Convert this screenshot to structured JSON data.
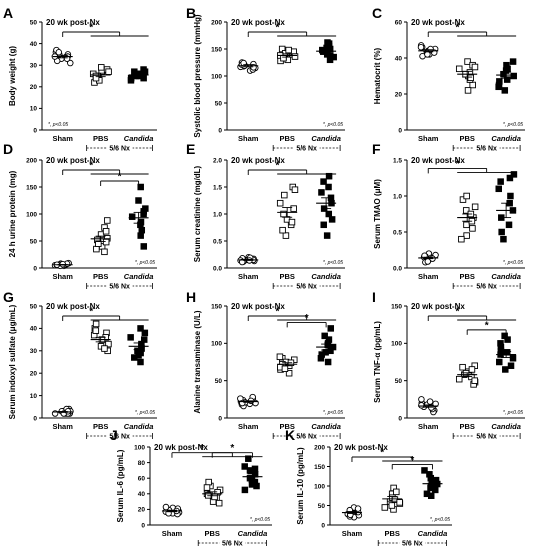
{
  "figure": {
    "group_label": "5/6 Nx",
    "significance_star": "*",
    "p_note": "*, p<0.05",
    "colors": {
      "ink": "#000000",
      "background": "#ffffff"
    }
  },
  "chart_data": [
    {
      "id": "A",
      "type": "scatter",
      "title": "20 wk post-Nx",
      "ylabel": "Body weight (g)",
      "ylim": [
        0,
        50
      ],
      "yticks": [
        0,
        10,
        20,
        30,
        40,
        50
      ],
      "categories": [
        "Sham",
        "PBS",
        "Candida"
      ],
      "markers": [
        "circle",
        "square",
        "square-filled"
      ],
      "values": [
        [
          34,
          36,
          33,
          35,
          32,
          34,
          37,
          31,
          35,
          33,
          34,
          36
        ],
        [
          27,
          24,
          25,
          29,
          22,
          26,
          28,
          25,
          23,
          27,
          24
        ],
        [
          26,
          25,
          27,
          24,
          28,
          23,
          26,
          27,
          25,
          24,
          26
        ]
      ],
      "means": [
        34,
        25.5,
        25.5
      ],
      "sem": [
        0.6,
        0.8,
        0.5
      ],
      "brackets": [
        {
          "a": 0,
          "b": [
            1,
            2
          ],
          "label": "*"
        }
      ],
      "pnote": "*, p<0.05",
      "pnote_pos": "bottom-left"
    },
    {
      "id": "B",
      "type": "scatter",
      "title": "20 wk post-Nx",
      "ylabel": "Systolic blood pressure (mmHg)",
      "ylim": [
        0,
        200
      ],
      "yticks": [
        0,
        50,
        100,
        150,
        200
      ],
      "categories": [
        "Sham",
        "PBS",
        "Candida"
      ],
      "markers": [
        "circle",
        "square",
        "square-filled"
      ],
      "values": [
        [
          120,
          115,
          110,
          125,
          118,
          122,
          112,
          117,
          121,
          119,
          116,
          124
        ],
        [
          140,
          130,
          145,
          135,
          150,
          128,
          142,
          138,
          148,
          133,
          136
        ],
        [
          150,
          140,
          160,
          135,
          155,
          148,
          130,
          162,
          145,
          138,
          152
        ]
      ],
      "means": [
        119,
        138,
        146
      ],
      "sem": [
        2,
        3,
        3
      ],
      "brackets": [
        {
          "a": 0,
          "b": [
            1,
            2
          ],
          "label": "*"
        }
      ],
      "pnote": "*, p<0.05",
      "pnote_pos": "bottom-right"
    },
    {
      "id": "C",
      "type": "scatter",
      "title": "20 wk post-Nx",
      "ylabel": "Hematocrit (%)",
      "ylim": [
        0,
        60
      ],
      "yticks": [
        0,
        20,
        40,
        60
      ],
      "categories": [
        "Sham",
        "PBS",
        "Candida"
      ],
      "markers": [
        "circle",
        "square",
        "square-filled"
      ],
      "values": [
        [
          44,
          42,
          46,
          43,
          45,
          41,
          47,
          43,
          44,
          42,
          45,
          46
        ],
        [
          38,
          30,
          25,
          34,
          28,
          32,
          36,
          22,
          31,
          29,
          35
        ],
        [
          36,
          28,
          25,
          33,
          30,
          22,
          38,
          27,
          31,
          24,
          34
        ]
      ],
      "means": [
        44,
        31,
        30.5
      ],
      "sem": [
        0.6,
        1.6,
        1.7
      ],
      "brackets": [
        {
          "a": 0,
          "b": [
            1,
            2
          ],
          "label": "*"
        }
      ],
      "pnote": "*, p<0.05",
      "pnote_pos": "bottom-right"
    },
    {
      "id": "D",
      "type": "scatter",
      "title": "20 wk post-Nx",
      "ylabel": "24 h urine protein (mg)",
      "ylim": [
        0,
        200
      ],
      "yticks": [
        0,
        50,
        100,
        150,
        200
      ],
      "categories": [
        "Sham",
        "PBS",
        "Candida"
      ],
      "markers": [
        "circle",
        "square",
        "square-filled"
      ],
      "values": [
        [
          5,
          8,
          6,
          4,
          9,
          7,
          5,
          6,
          8,
          4,
          7,
          6
        ],
        [
          40,
          55,
          75,
          30,
          62,
          48,
          88,
          35,
          52,
          68,
          45
        ],
        [
          80,
          100,
          150,
          60,
          110,
          70,
          95,
          125,
          40,
          85,
          105
        ]
      ],
      "means": [
        6,
        54,
        93
      ],
      "sem": [
        0.5,
        5,
        10
      ],
      "brackets": [
        {
          "a": 0,
          "b": [
            1,
            2
          ],
          "label": "*"
        },
        {
          "a": 1,
          "b": [
            2
          ],
          "label": "*"
        }
      ],
      "pnote": "*, p<0.05",
      "pnote_pos": "bottom-right"
    },
    {
      "id": "E",
      "type": "scatter",
      "title": "20 wk post-Nx",
      "ylabel": "Serum creatinine (mg/dL)",
      "ylim": [
        0,
        2.0
      ],
      "yticks": [
        0.0,
        0.5,
        1.0,
        1.5,
        2.0
      ],
      "categories": [
        "Sham",
        "PBS",
        "Candida"
      ],
      "markers": [
        "circle",
        "square",
        "square-filled"
      ],
      "values": [
        [
          0.15,
          0.12,
          0.18,
          0.14,
          0.2,
          0.13,
          0.16,
          0.11,
          0.17,
          0.15,
          0.19,
          0.14
        ],
        [
          1.5,
          0.8,
          1.2,
          0.6,
          1.35,
          0.9,
          1.1,
          0.7,
          1.45,
          1.0,
          0.85
        ],
        [
          1.6,
          1.0,
          1.4,
          0.8,
          1.7,
          1.2,
          0.6,
          1.5,
          1.1,
          1.3,
          0.9
        ]
      ],
      "means": [
        0.15,
        1.03,
        1.2
      ],
      "sem": [
        0.01,
        0.09,
        0.1
      ],
      "brackets": [
        {
          "a": 0,
          "b": [
            1,
            2
          ],
          "label": "*"
        }
      ],
      "pnote": "*, p<0.05",
      "pnote_pos": "bottom-right"
    },
    {
      "id": "F",
      "type": "scatter",
      "title": "20 wk post-Nx",
      "ylabel": "Serum TMAO (μM)",
      "ylim": [
        0,
        1.5
      ],
      "yticks": [
        0.0,
        0.5,
        1.0,
        1.5
      ],
      "categories": [
        "Sham",
        "PBS",
        "Candida"
      ],
      "markers": [
        "circle",
        "square",
        "square-filled"
      ],
      "values": [
        [
          0.12,
          0.18,
          0.1,
          0.15,
          0.2,
          0.08,
          0.14,
          0.11,
          0.16,
          0.13,
          0.09,
          0.17
        ],
        [
          0.95,
          0.6,
          0.8,
          0.45,
          1.0,
          0.7,
          0.55,
          0.85,
          0.4,
          0.75,
          0.65
        ],
        [
          1.3,
          0.8,
          1.2,
          0.4,
          1.1,
          0.6,
          0.9,
          1.25,
          0.5,
          0.7,
          1.0
        ]
      ],
      "means": [
        0.14,
        0.7,
        0.8
      ],
      "sem": [
        0.01,
        0.05,
        0.1
      ],
      "brackets": [
        {
          "a": 0,
          "b": [
            1,
            2
          ],
          "label": "*"
        }
      ],
      "pnote": "*, p<0.05",
      "pnote_pos": "bottom-right"
    },
    {
      "id": "G",
      "type": "scatter",
      "title": "20 wk post-Nx",
      "ylabel": "Serum indoxyl sulfate (μg/mL)",
      "ylim": [
        0,
        50
      ],
      "yticks": [
        0,
        10,
        20,
        30,
        40,
        50
      ],
      "categories": [
        "Sham",
        "PBS",
        "Candida"
      ],
      "markers": [
        "circle",
        "square",
        "square-filled"
      ],
      "values": [
        [
          2,
          3,
          2,
          4,
          3,
          2,
          3,
          2,
          4,
          3,
          2,
          3
        ],
        [
          38,
          32,
          40,
          36,
          30,
          35,
          42,
          33,
          37,
          31,
          39
        ],
        [
          35,
          28,
          40,
          30,
          25,
          38,
          33,
          27,
          36,
          31,
          29
        ]
      ],
      "means": [
        2.7,
        35,
        32
      ],
      "sem": [
        0.2,
        1,
        1.5
      ],
      "brackets": [
        {
          "a": 0,
          "b": [
            1,
            2
          ],
          "label": "*"
        }
      ],
      "pnote": "*, p<0.05",
      "pnote_pos": "bottom-right"
    },
    {
      "id": "H",
      "type": "scatter",
      "title": "20 wk post-Nx",
      "ylabel": "Alanine transaminase (U/L)",
      "ylim": [
        0,
        150
      ],
      "yticks": [
        0,
        50,
        100,
        150
      ],
      "categories": [
        "Sham",
        "PBS",
        "Candida"
      ],
      "markers": [
        "circle",
        "square",
        "square-filled"
      ],
      "values": [
        [
          22,
          18,
          25,
          20,
          28,
          16,
          24,
          19,
          23,
          21,
          26,
          20
        ],
        [
          70,
          65,
          80,
          75,
          60,
          72,
          68,
          78,
          74,
          66,
          82
        ],
        [
          95,
          110,
          80,
          120,
          90,
          100,
          75,
          105,
          88,
          98,
          85
        ]
      ],
      "means": [
        22,
        72,
        95
      ],
      "sem": [
        1,
        2,
        4
      ],
      "brackets": [
        {
          "a": 0,
          "b": [
            1,
            2
          ],
          "label": "*"
        },
        {
          "a": 1,
          "b": [
            2
          ],
          "label": "*"
        }
      ],
      "pnote": "*, p<0.05",
      "pnote_pos": "bottom-right"
    },
    {
      "id": "I",
      "type": "scatter",
      "title": "20 wk post-Nx",
      "ylabel": "Serum TNF-α (pg/mL)",
      "ylim": [
        0,
        150
      ],
      "yticks": [
        0,
        50,
        100,
        150
      ],
      "categories": [
        "Sham",
        "PBS",
        "Candida"
      ],
      "markers": [
        "circle",
        "square",
        "square-filled"
      ],
      "values": [
        [
          15,
          10,
          20,
          18,
          8,
          25,
          12,
          16,
          22,
          14,
          19,
          17
        ],
        [
          55,
          62,
          48,
          70,
          58,
          45,
          65,
          52,
          60,
          50,
          68
        ],
        [
          85,
          100,
          75,
          110,
          90,
          70,
          95,
          80,
          105,
          65,
          88
        ]
      ],
      "means": [
        16,
        58,
        85
      ],
      "sem": [
        1.5,
        2.5,
        4
      ],
      "brackets": [
        {
          "a": 0,
          "b": [
            1,
            2
          ],
          "label": "*"
        },
        {
          "a": 1,
          "b": [
            2
          ],
          "label": "*"
        }
      ],
      "pnote": "*, p<0.05",
      "pnote_pos": "bottom-right"
    },
    {
      "id": "J",
      "type": "scatter",
      "title": "20 wk post-Nx",
      "ylabel": "Serum IL-6 (pg/mL)",
      "ylim": [
        0,
        100
      ],
      "yticks": [
        0,
        20,
        40,
        60,
        80,
        100
      ],
      "categories": [
        "Sham",
        "PBS",
        "Candida"
      ],
      "markers": [
        "circle",
        "square",
        "square-filled"
      ],
      "values": [
        [
          18,
          15,
          20,
          22,
          16,
          14,
          19,
          21,
          17,
          23,
          15,
          18
        ],
        [
          40,
          35,
          50,
          30,
          45,
          38,
          55,
          42,
          28,
          48,
          36
        ],
        [
          60,
          75,
          50,
          85,
          55,
          70,
          45,
          65,
          58,
          72,
          52
        ]
      ],
      "means": [
        18,
        40,
        62
      ],
      "sem": [
        1,
        2.5,
        3.5
      ],
      "brackets": [
        {
          "a": 0,
          "b": [
            1,
            2
          ],
          "label": "*"
        },
        {
          "a": 1,
          "b": [
            2
          ],
          "label": "*"
        }
      ],
      "pnote": "*, p<0.05",
      "pnote_pos": "bottom-right"
    },
    {
      "id": "K",
      "type": "scatter",
      "title": "20 wk post-Nx",
      "ylabel": "Serum IL-10 (pg/mL)",
      "ylim": [
        0,
        200
      ],
      "yticks": [
        0,
        50,
        100,
        150,
        200
      ],
      "categories": [
        "Sham",
        "PBS",
        "Candida"
      ],
      "markers": [
        "circle",
        "square",
        "square-filled"
      ],
      "values": [
        [
          30,
          20,
          40,
          35,
          25,
          45,
          28,
          38,
          22,
          33,
          42,
          26
        ],
        [
          60,
          45,
          80,
          55,
          95,
          40,
          70,
          50,
          85,
          65,
          58
        ],
        [
          100,
          120,
          80,
          140,
          90,
          110,
          75,
          130,
          95,
          105,
          115
        ]
      ],
      "means": [
        32,
        67,
        106
      ],
      "sem": [
        2.5,
        6,
        7
      ],
      "brackets": [
        {
          "a": 0,
          "b": [
            1,
            2
          ],
          "label": "*"
        },
        {
          "a": 1,
          "b": [
            2
          ],
          "label": "*"
        }
      ],
      "pnote": "*, p<0.05",
      "pnote_pos": "bottom-right"
    }
  ]
}
